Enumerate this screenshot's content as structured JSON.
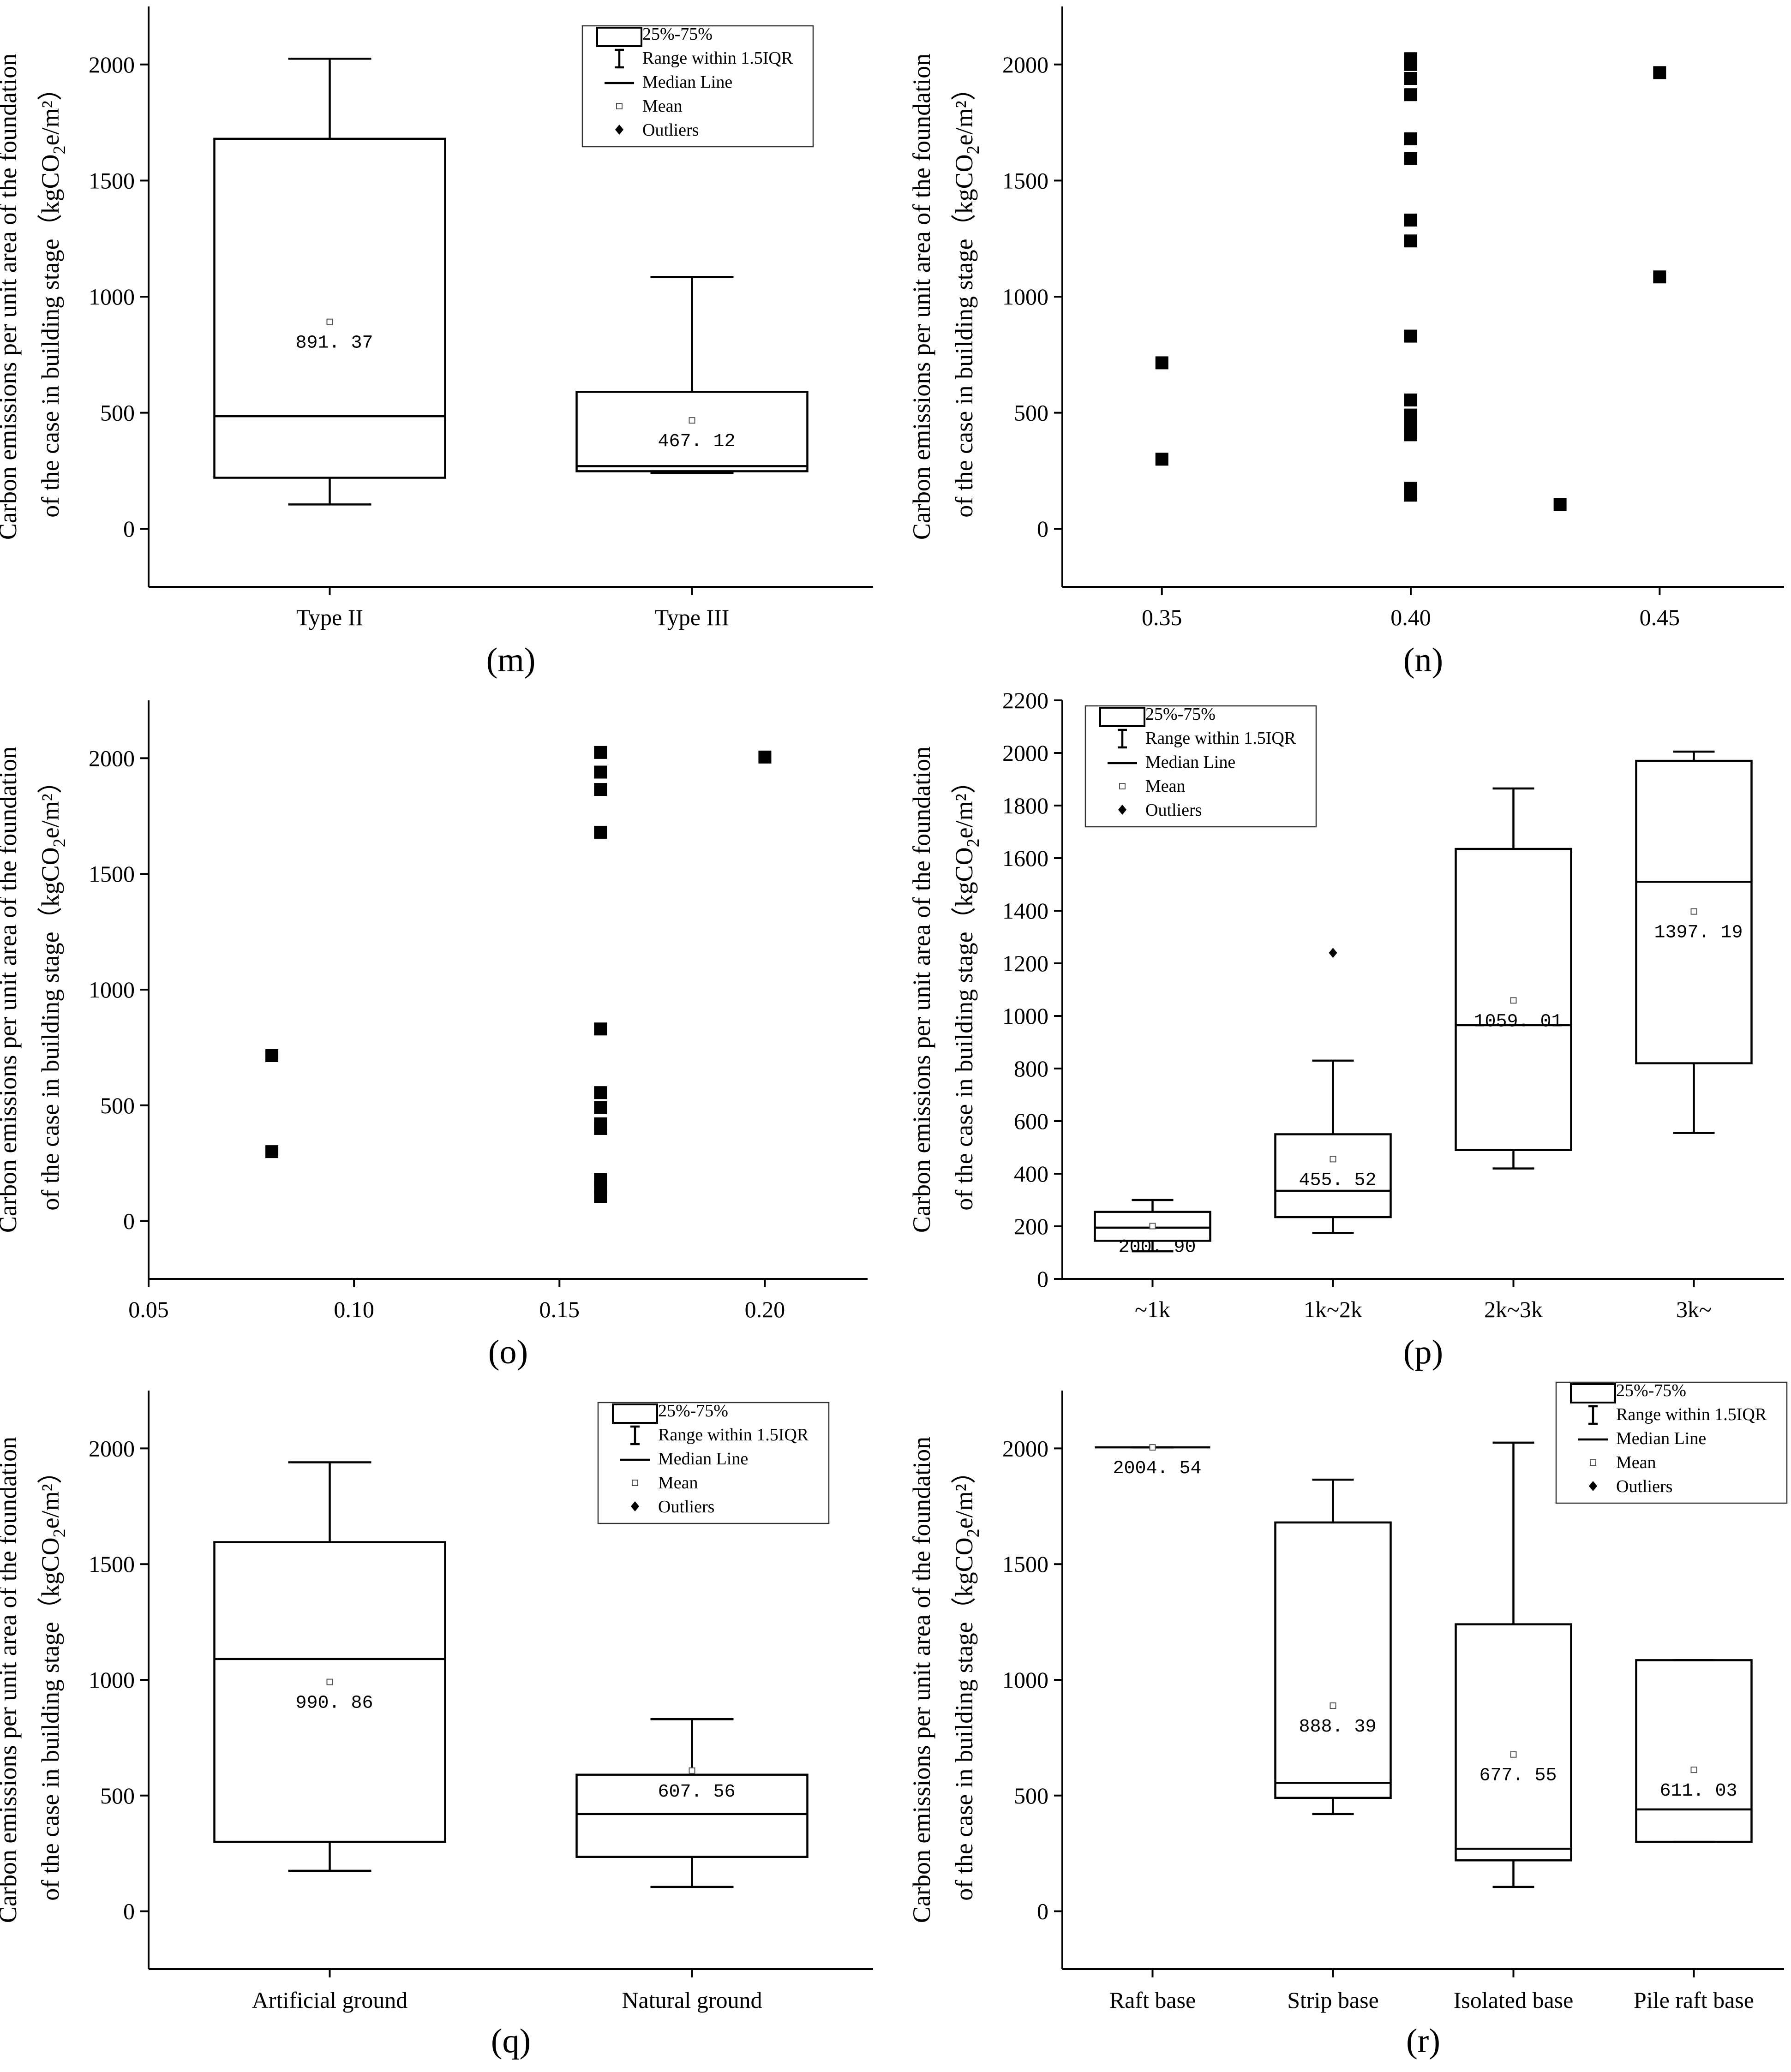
{
  "axis_title_line1": "Carbon emissions per unit area of the foundation",
  "axis_title_line2_prefix": "of the case in building stage（kgCO",
  "axis_title_line2_sub": "2",
  "axis_title_line2_suffix": "e/m²）",
  "legend": {
    "box": "25%-75%",
    "range": "Range within 1.5IQR",
    "median": "Median Line",
    "mean": "Mean",
    "outliers": "Outliers"
  },
  "chart_data": [
    {
      "id": "m",
      "label": "(m)",
      "type": "box",
      "ylim": [
        -250,
        2250
      ],
      "yticks": [
        0,
        500,
        1000,
        1500,
        2000
      ],
      "xlabel": "",
      "ylabel": "Carbon emissions per unit area of the foundation of the case in building stage (kgCO2e/m²)",
      "legend": true,
      "groups": [
        {
          "category": "Type II",
          "min": 105,
          "q1": 220,
          "median": 485,
          "q3": 1680,
          "max": 2025,
          "mean": 891.37,
          "mean_label": "891. 37"
        },
        {
          "category": "Type III",
          "min": 240,
          "q1": 248,
          "median": 270,
          "q3": 590,
          "max": 1085,
          "mean": 467.12,
          "mean_label": "467. 12"
        }
      ]
    },
    {
      "id": "n",
      "label": "(n)",
      "type": "scatter",
      "xlim": [
        0.33,
        0.475
      ],
      "xticks": [
        "0.35",
        "0.40",
        "0.45"
      ],
      "ylim": [
        -250,
        2250
      ],
      "yticks": [
        0,
        500,
        1000,
        1500,
        2000
      ],
      "ylabel": "Carbon emissions per unit area of the foundation of the case in building stage (kgCO2e/m²)",
      "points": [
        {
          "x": 0.35,
          "y": 715
        },
        {
          "x": 0.35,
          "y": 300
        },
        {
          "x": 0.4,
          "y": 2025
        },
        {
          "x": 0.4,
          "y": 2000
        },
        {
          "x": 0.4,
          "y": 1940
        },
        {
          "x": 0.4,
          "y": 1870
        },
        {
          "x": 0.4,
          "y": 1680
        },
        {
          "x": 0.4,
          "y": 1595
        },
        {
          "x": 0.4,
          "y": 1330
        },
        {
          "x": 0.4,
          "y": 1240
        },
        {
          "x": 0.4,
          "y": 830
        },
        {
          "x": 0.4,
          "y": 555
        },
        {
          "x": 0.4,
          "y": 490
        },
        {
          "x": 0.4,
          "y": 440
        },
        {
          "x": 0.4,
          "y": 405
        },
        {
          "x": 0.4,
          "y": 175
        },
        {
          "x": 0.4,
          "y": 145
        },
        {
          "x": 0.43,
          "y": 105
        },
        {
          "x": 0.45,
          "y": 1965
        },
        {
          "x": 0.45,
          "y": 1085
        }
      ]
    },
    {
      "id": "o",
      "label": "(o)",
      "type": "scatter",
      "xlim": [
        0.05,
        0.225
      ],
      "xticks": [
        "0.05",
        "0.10",
        "0.15",
        "0.20"
      ],
      "ylim": [
        -250,
        2250
      ],
      "yticks": [
        0,
        500,
        1000,
        1500,
        2000
      ],
      "ylabel": "Carbon emissions per unit area of the foundation of the case in building stage (kgCO2e/m²)",
      "points": [
        {
          "x": 0.08,
          "y": 715
        },
        {
          "x": 0.08,
          "y": 300
        },
        {
          "x": 0.16,
          "y": 2025
        },
        {
          "x": 0.16,
          "y": 1940
        },
        {
          "x": 0.16,
          "y": 1865
        },
        {
          "x": 0.16,
          "y": 1680
        },
        {
          "x": 0.16,
          "y": 830
        },
        {
          "x": 0.16,
          "y": 555
        },
        {
          "x": 0.16,
          "y": 490
        },
        {
          "x": 0.16,
          "y": 420
        },
        {
          "x": 0.16,
          "y": 400
        },
        {
          "x": 0.16,
          "y": 180
        },
        {
          "x": 0.16,
          "y": 145
        },
        {
          "x": 0.16,
          "y": 105
        },
        {
          "x": 0.2,
          "y": 2005
        }
      ]
    },
    {
      "id": "p",
      "label": "(p)",
      "type": "box",
      "ylim": [
        0,
        2200
      ],
      "yticks": [
        0,
        200,
        400,
        600,
        800,
        1000,
        1200,
        1400,
        1600,
        1800,
        2000,
        2200
      ],
      "ylabel": "Carbon emissions per unit area of the foundation of the case in building stage (kgCO2e/m²)",
      "legend": true,
      "groups": [
        {
          "category": "~1k",
          "min": 105,
          "q1": 145,
          "median": 195,
          "q3": 255,
          "max": 300,
          "mean": 200.9,
          "mean_label": "200. 90",
          "outliers": []
        },
        {
          "category": "1k~2k",
          "min": 175,
          "q1": 235,
          "median": 335,
          "q3": 550,
          "max": 830,
          "mean": 455.52,
          "mean_label": "455. 52",
          "outliers": [
            1240
          ]
        },
        {
          "category": "2k~3k",
          "min": 420,
          "q1": 490,
          "median": 965,
          "q3": 1635,
          "max": 1865,
          "mean": 1059.01,
          "mean_label": "1059. 01",
          "outliers": []
        },
        {
          "category": "3k~",
          "min": 555,
          "q1": 820,
          "median": 1510,
          "q3": 1970,
          "max": 2005,
          "mean": 1397.19,
          "mean_label": "1397. 19",
          "outliers": []
        }
      ]
    },
    {
      "id": "q",
      "label": "(q)",
      "type": "box",
      "ylim": [
        -250,
        2250
      ],
      "yticks": [
        0,
        500,
        1000,
        1500,
        2000
      ],
      "ylabel": "Carbon emissions per unit area of the foundation of the case in building stage (kgCO2e/m²)",
      "legend": true,
      "groups": [
        {
          "category": "Artificial ground",
          "min": 175,
          "q1": 300,
          "median": 1090,
          "q3": 1595,
          "max": 1940,
          "mean": 990.86,
          "mean_label": "990. 86"
        },
        {
          "category": "Natural ground",
          "min": 105,
          "q1": 235,
          "median": 420,
          "q3": 590,
          "max": 830,
          "mean": 607.56,
          "mean_label": "607. 56"
        }
      ]
    },
    {
      "id": "r",
      "label": "(r)",
      "type": "box",
      "ylim": [
        -250,
        2250
      ],
      "yticks": [
        0,
        500,
        1000,
        1500,
        2000
      ],
      "ylabel": "Carbon emissions per unit area of the foundation of the case in building stage (kgCO2e/m²)",
      "legend": true,
      "groups": [
        {
          "category": "Raft base",
          "min": 2004.54,
          "q1": 2004.54,
          "median": 2004.54,
          "q3": 2004.54,
          "max": 2004.54,
          "mean": 2004.54,
          "mean_label": "2004. 54"
        },
        {
          "category": "Strip base",
          "min": 420,
          "q1": 490,
          "median": 555,
          "q3": 1680,
          "max": 1865,
          "mean": 888.39,
          "mean_label": "888. 39"
        },
        {
          "category": "Isolated base",
          "min": 105,
          "q1": 220,
          "median": 270,
          "q3": 1240,
          "max": 2025,
          "mean": 677.55,
          "mean_label": "677. 55"
        },
        {
          "category": "Pile raft base",
          "min": 300,
          "q1": 300,
          "median": 440,
          "q3": 1085,
          "max": 1085,
          "mean": 611.03,
          "mean_label": "611. 03"
        }
      ]
    }
  ]
}
